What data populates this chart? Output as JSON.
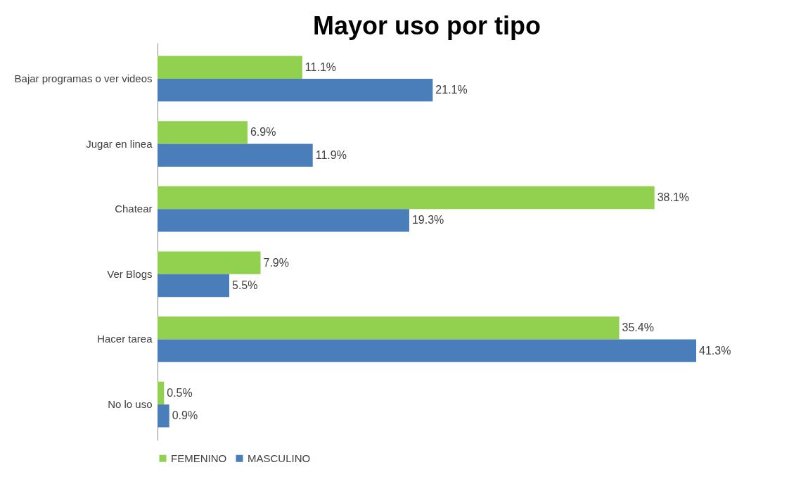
{
  "chart_data": {
    "type": "bar",
    "orientation": "horizontal",
    "title": "Mayor uso por tipo",
    "categories": [
      "Bajar programas o ver videos",
      "Jugar en linea",
      "Chatear",
      "Ver Blogs",
      "Hacer tarea",
      "No lo uso"
    ],
    "series": [
      {
        "name": "FEMENINO",
        "color": "#92d050",
        "values": [
          11.1,
          6.9,
          38.1,
          7.9,
          35.4,
          0.5
        ],
        "value_labels": [
          "11.1%",
          "6.9%",
          "38.1%",
          "7.9%",
          "35.4%",
          "0.5%"
        ]
      },
      {
        "name": "MASCULINO",
        "color": "#4a7ebb",
        "values": [
          21.1,
          11.9,
          19.3,
          5.5,
          41.3,
          0.9
        ],
        "value_labels": [
          "21.1%",
          "11.9%",
          "19.3%",
          "5.5%",
          "41.3%",
          "0.9%"
        ]
      }
    ],
    "legend": "bottom"
  }
}
